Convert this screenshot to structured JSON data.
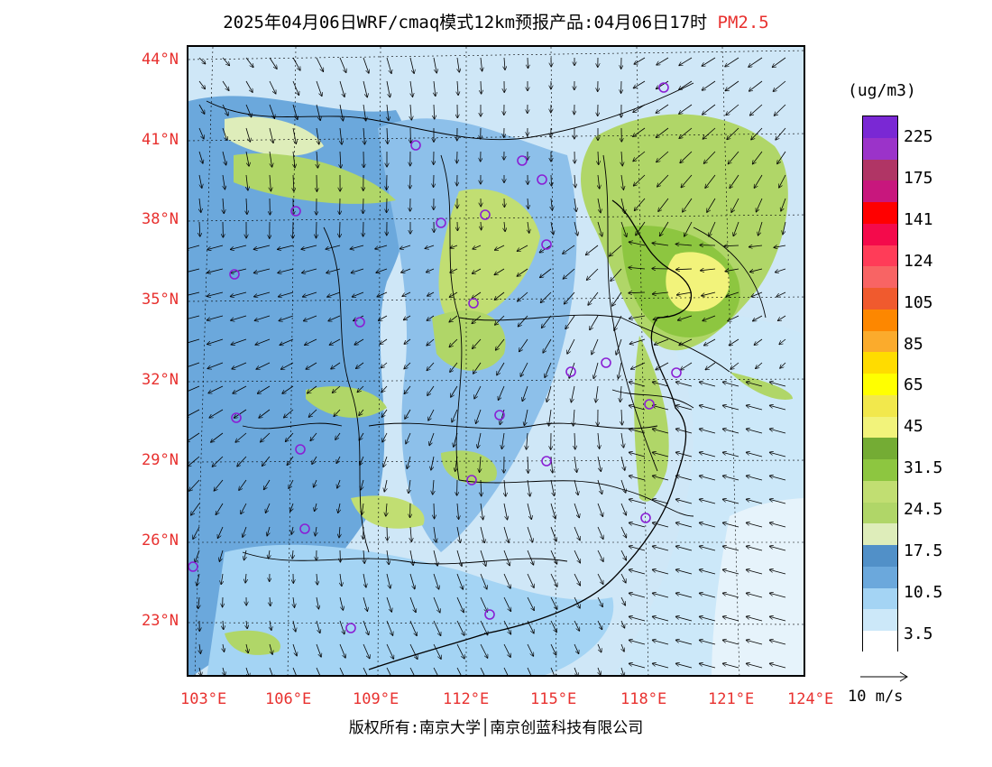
{
  "title": {
    "main": "2025年04月06日WRF/cmaq模式12km预报产品:04月06日17时",
    "species": "PM2.5"
  },
  "latitude_labels": [
    "44°N",
    "41°N",
    "38°N",
    "35°N",
    "32°N",
    "29°N",
    "26°N",
    "23°N"
  ],
  "longitude_labels": [
    "103°E",
    "106°E",
    "109°E",
    "112°E",
    "115°E",
    "118°E",
    "121°E",
    "124°E"
  ],
  "colorbar": {
    "unit": "(ug/m3)",
    "labels": [
      "225",
      "175",
      "141",
      "124",
      "105",
      "85",
      "65",
      "45",
      "31.5",
      "24.5",
      "17.5",
      "10.5",
      "3.5"
    ],
    "colors": [
      "#7a28d4",
      "#9b33c9",
      "#b03565",
      "#c8177d",
      "#ff0000",
      "#f40a4b",
      "#ff3c58",
      "#f86464",
      "#f05a2e",
      "#fd8700",
      "#fbab2c",
      "#ffdc00",
      "#ffff00",
      "#f2e84c",
      "#f2f37b",
      "#74ac34",
      "#8dc640",
      "#c1de72",
      "#b0d668",
      "#deedba",
      "#5190c8",
      "#6ba8dc",
      "#a4d4f4",
      "#cce8f9",
      "#ffffff"
    ]
  },
  "wind_reference": "10 m/s",
  "stations_count": 24,
  "copyright": "版权所有:南京大学│南京创蓝科技有限公司"
}
